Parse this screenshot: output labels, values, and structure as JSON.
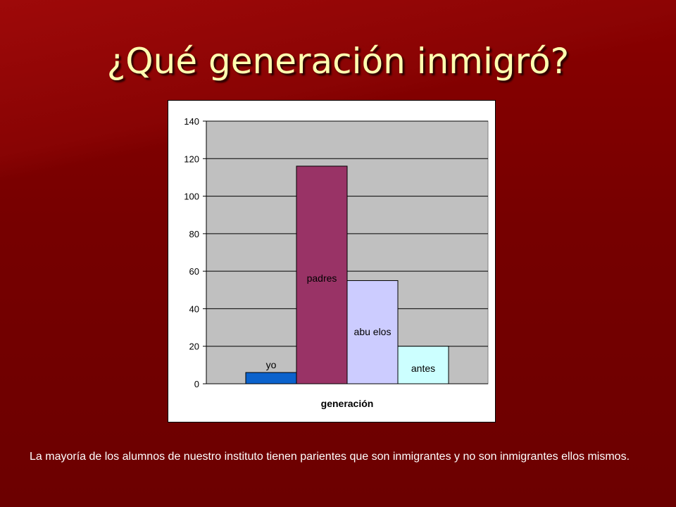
{
  "slide": {
    "title": "¿Qué generación inmigró?",
    "caption": "La mayoría de los alumnos de nuestro instituto tienen parientes que son inmigrantes y no son inmigrantes ellos mismos."
  },
  "chart_data": {
    "type": "bar",
    "categories": [
      "yo",
      "padres",
      "abu elos",
      "antes"
    ],
    "values": [
      6,
      116,
      55,
      20
    ],
    "colors": [
      "#0b62cc",
      "#993366",
      "#ccccff",
      "#ccffff"
    ],
    "xlabel": "generación",
    "ylabel": "",
    "ylim": [
      0,
      140
    ],
    "yticks": [
      0,
      20,
      40,
      60,
      80,
      100,
      120,
      140
    ],
    "grid": true,
    "plot_background": "#c0c0c0",
    "legend": "none"
  }
}
